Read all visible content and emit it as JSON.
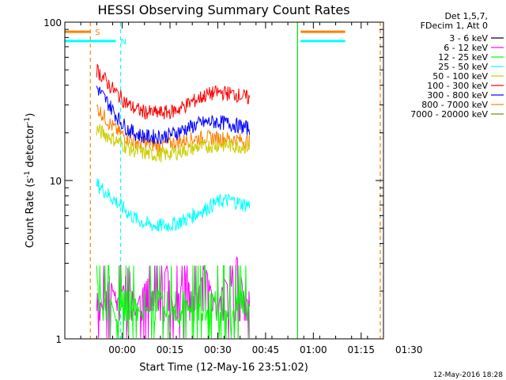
{
  "chart_data": {
    "type": "line",
    "title": "HESSI Observing Summary Count Rates",
    "xlabel": "Start Time (12-May-16 23:51:02)",
    "ylabel_main": "Count Rate (s",
    "ylabel_sup1": "-1",
    "ylabel_mid": " detector",
    "ylabel_sup2": "-1",
    "ylabel_end": ")",
    "y_scale": "log",
    "ylim": [
      1,
      100
    ],
    "xlim_minutes_from_start": [
      -9,
      91
    ],
    "x_ticks": [
      {
        "minutes": 9,
        "label": "00:00"
      },
      {
        "minutes": 24,
        "label": "00:15"
      },
      {
        "minutes": 39,
        "label": "00:30"
      },
      {
        "minutes": 54,
        "label": "00:45"
      },
      {
        "minutes": 69,
        "label": "01:00"
      },
      {
        "minutes": 84,
        "label": "01:15"
      },
      {
        "minutes": 99,
        "label": "01:30"
      }
    ],
    "y_ticks": [
      {
        "value": 1,
        "label": "1"
      },
      {
        "value": 10,
        "label": "10"
      },
      {
        "value": 100,
        "label": "100"
      }
    ],
    "legend_header": [
      "Det 1,5,7,",
      "FDecim 1, Att 0"
    ],
    "legend_placement": "right",
    "series": [
      {
        "name": "3 - 6 keV",
        "color": "#000000",
        "values": []
      },
      {
        "name": "6 - 12 keV",
        "color": "#ff00ff",
        "start_min": 1,
        "end_min": 49,
        "values": [
          2.0,
          1.5,
          2.5,
          1.7,
          2.0,
          2.9,
          1.4,
          2.0,
          2.4,
          1.6,
          2.0,
          2.9,
          1.5,
          2.0,
          2.6,
          1.8,
          2.0,
          2.9,
          2.0,
          1.5,
          2.4,
          2.0,
          3.3,
          2.0,
          1.6
        ]
      },
      {
        "name": "12 - 25 keV",
        "color": "#00ff00",
        "start_min": 1,
        "end_min": 49,
        "values": [
          2.4,
          1.5,
          1.9,
          1.3,
          1.6,
          1.2,
          1.8,
          1.4,
          1.6,
          1.2,
          1.9,
          1.3,
          1.6,
          1.2,
          1.8,
          1.4,
          1.7,
          1.2,
          2.0,
          1.4,
          1.6,
          1.2,
          1.9,
          1.4,
          1.7
        ]
      },
      {
        "name": "25 - 50 keV",
        "color": "#00ffff",
        "start_min": 1,
        "end_min": 49,
        "values": [
          9.5,
          8.8,
          8.0,
          7.4,
          6.8,
          6.2,
          5.8,
          5.5,
          5.3,
          5.2,
          5.2,
          5.2,
          5.3,
          5.5,
          5.7,
          6.0,
          6.3,
          6.6,
          7.0,
          7.3,
          7.5,
          7.5,
          7.3,
          7.1,
          7.0
        ]
      },
      {
        "name": "50 - 100 keV",
        "color": "#cccc00",
        "start_min": 1,
        "end_min": 49,
        "values": [
          21,
          20,
          19,
          18,
          17,
          16,
          15.5,
          15,
          14.8,
          14.6,
          14.6,
          14.7,
          15,
          15.3,
          15.7,
          16,
          16.3,
          16.5,
          16.7,
          16.8,
          16.8,
          16.7,
          16.6,
          16.5,
          16.4
        ]
      },
      {
        "name": "100 - 300 keV",
        "color": "#ff0000",
        "start_min": 1,
        "end_min": 49,
        "values": [
          50,
          45,
          40,
          36,
          33,
          30,
          28.5,
          27.5,
          27,
          26.8,
          26.8,
          27,
          27.5,
          28.5,
          30,
          31.5,
          33,
          34.5,
          35.5,
          36,
          36,
          35.5,
          35,
          34,
          33
        ]
      },
      {
        "name": "300 - 800 keV",
        "color": "#0000ff",
        "start_min": 1,
        "end_min": 49,
        "values": [
          39,
          34,
          30,
          26,
          23,
          21,
          20,
          19.3,
          19,
          19,
          19,
          19.3,
          19.8,
          20.5,
          21.3,
          22,
          22.8,
          23.2,
          23.5,
          23.5,
          23.2,
          22.8,
          22.3,
          21.8,
          21.3
        ]
      },
      {
        "name": "800 - 7000 keV",
        "color": "#ff8000",
        "start_min": 1,
        "end_min": 49,
        "values": [
          29,
          26,
          23,
          21,
          19.5,
          18.5,
          17.8,
          17.3,
          17,
          16.8,
          16.8,
          17,
          17.3,
          17.7,
          18,
          18.3,
          18.5,
          18.7,
          18.7,
          18.6,
          18.5,
          18.3,
          18.1,
          17.9,
          17.7
        ]
      },
      {
        "name": "7000 - 20000 keV",
        "color": "#808000",
        "start_min": 1,
        "end_min": 49,
        "values": [
          2.0,
          2.9,
          2.0,
          1.5,
          2.9,
          2.0,
          2.0,
          2.9,
          1.5,
          2.0,
          2.9,
          2.0,
          1.5,
          2.9,
          2.0,
          2.0,
          2.9,
          1.5,
          2.0,
          2.9,
          2.0,
          2.9,
          2.0,
          1.5,
          2.9
        ]
      }
    ],
    "flags": [
      {
        "label": "S",
        "color": "#ff8000",
        "segments_minutes": [
          [
            -9,
            -1
          ],
          [
            65,
            79
          ]
        ],
        "level": 87
      },
      {
        "label": "N",
        "color": "#00ffff",
        "segments_minutes": [
          [
            -9,
            7
          ],
          [
            65,
            79
          ]
        ],
        "level": 76
      }
    ],
    "markers": [
      {
        "minutes": -1,
        "color": "#ff8000",
        "style": "dashed"
      },
      {
        "minutes": 8.5,
        "color": "#00ffff",
        "style": "dashed"
      },
      {
        "minutes": 64,
        "color": "#00cc00",
        "style": "solid"
      },
      {
        "minutes": 90,
        "color": "#ff8000",
        "style": "dashed"
      }
    ]
  },
  "footer": {
    "timestamp": "12-May-2016 18:28"
  }
}
